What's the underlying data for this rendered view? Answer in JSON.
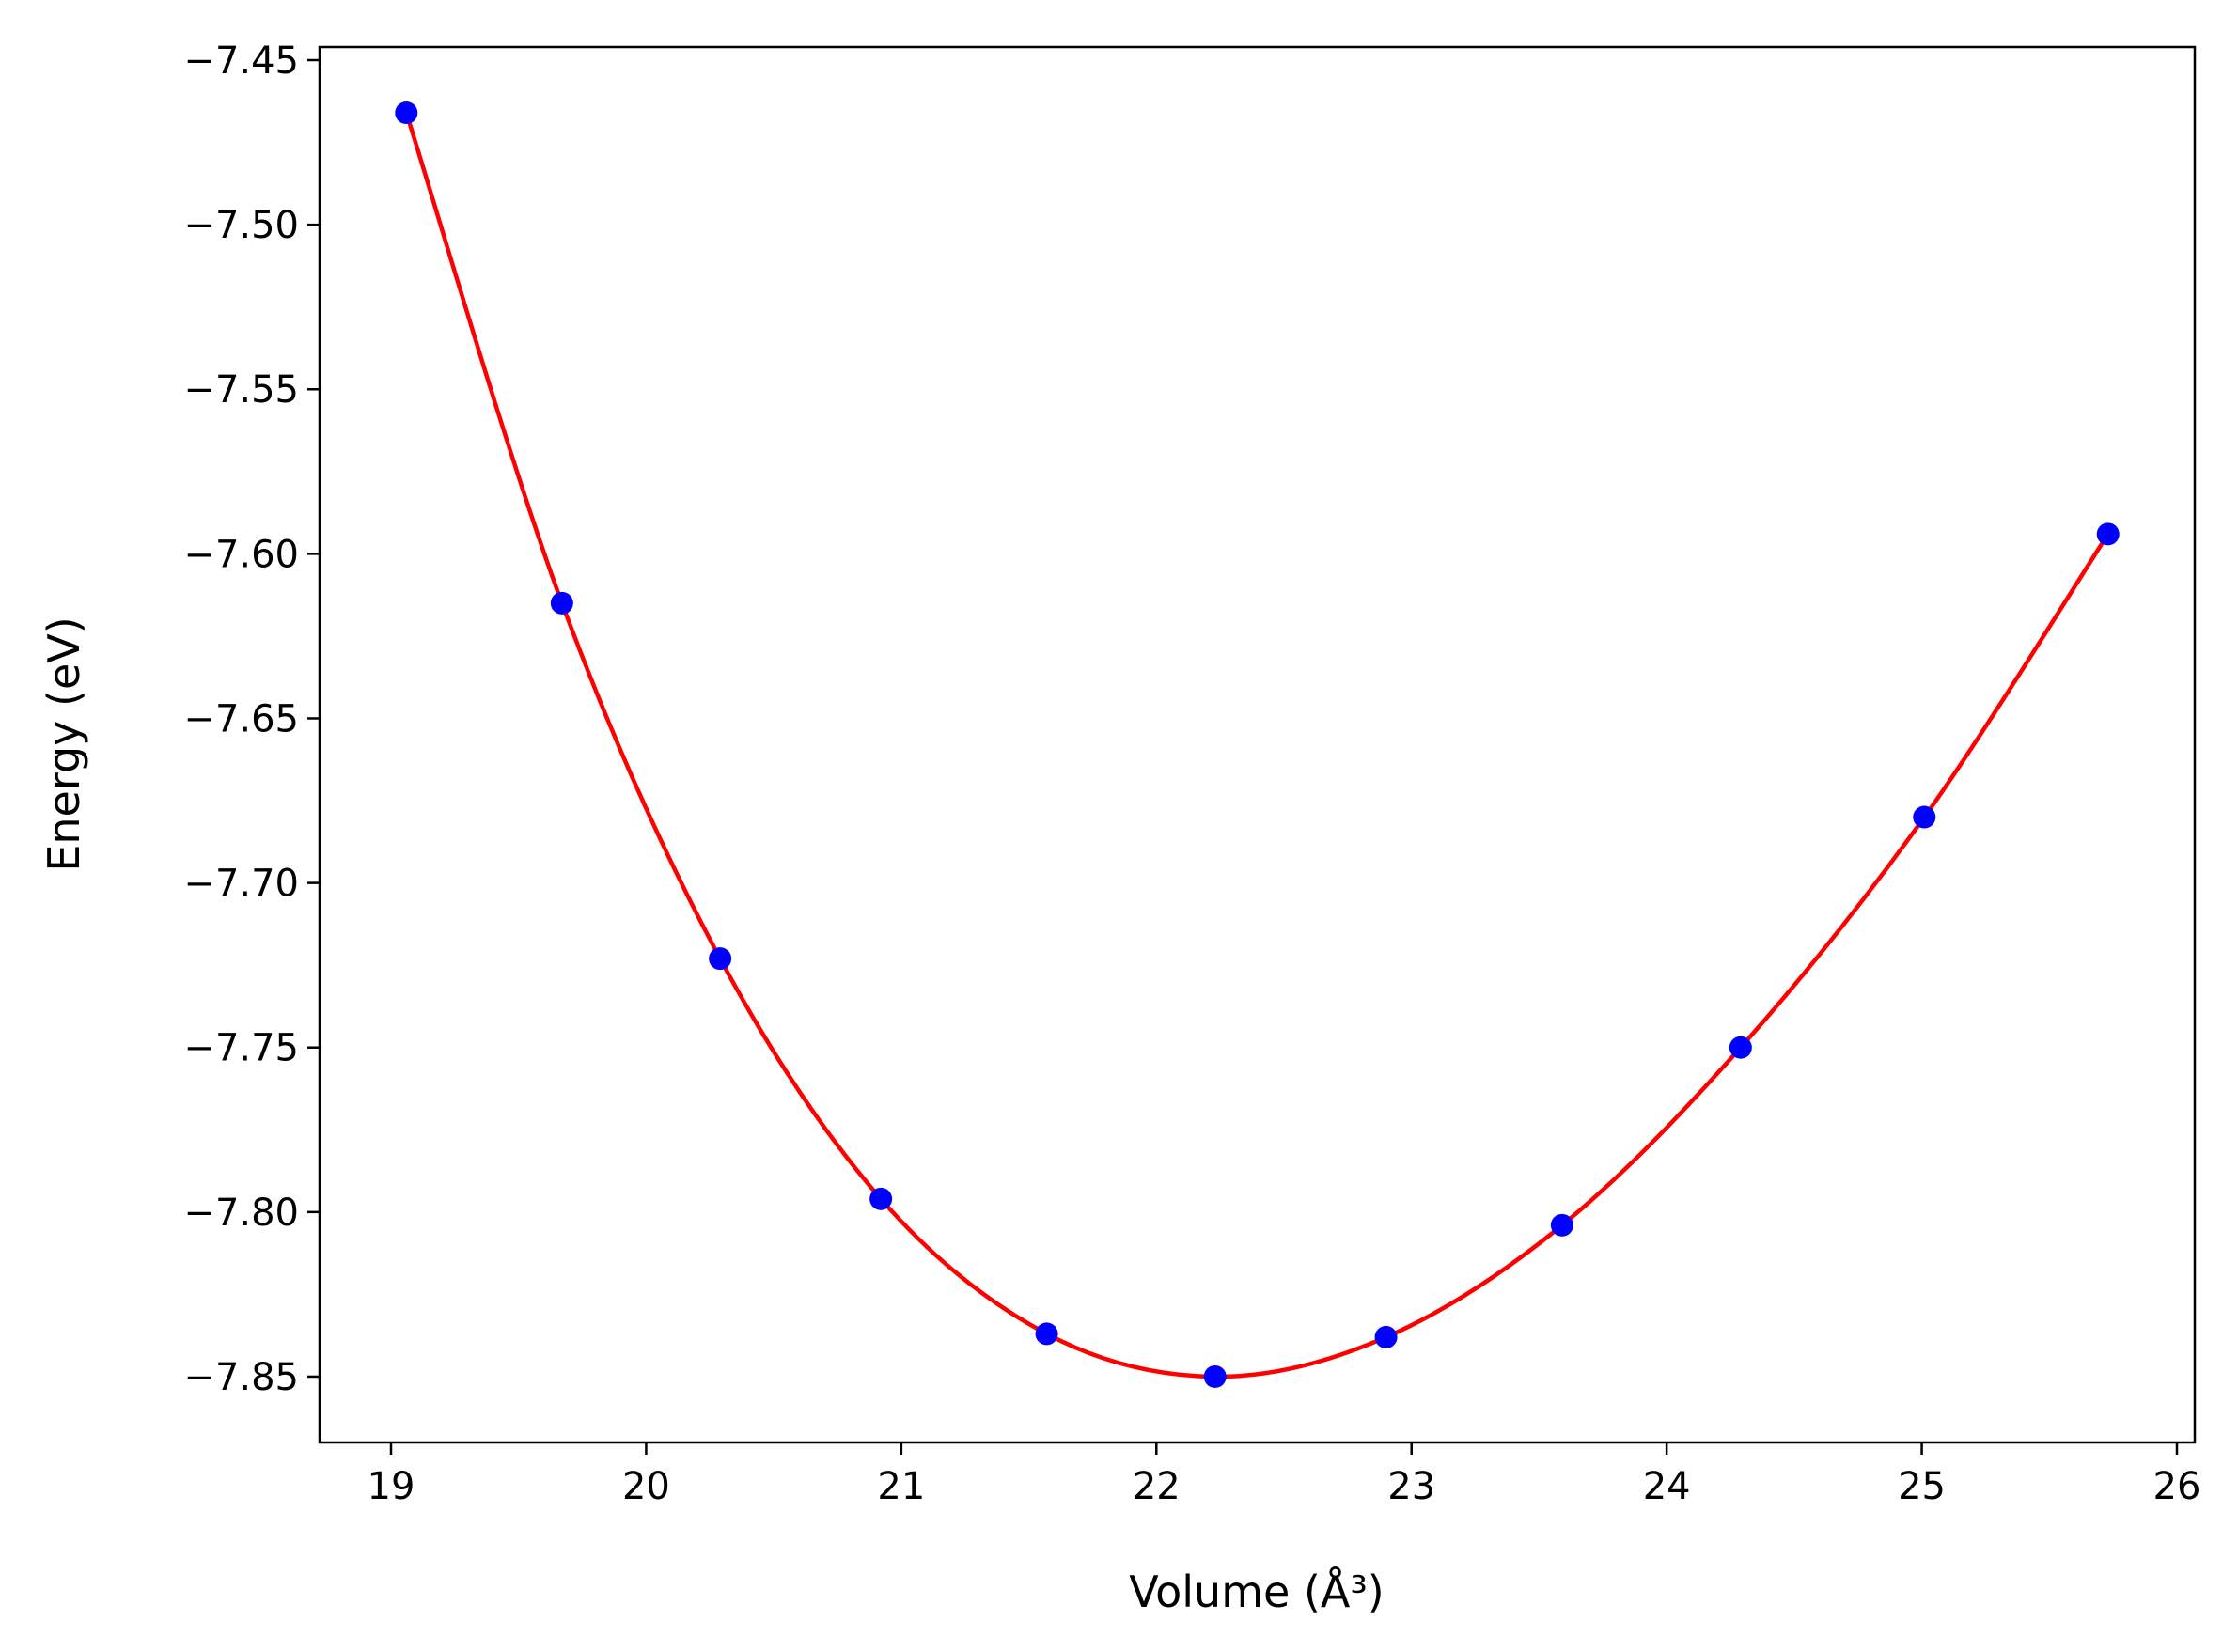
{
  "chart_data": {
    "type": "line",
    "xlabel": "Volume (Å³)",
    "ylabel": "Energy (eV)",
    "xlim": [
      18.72,
      26.07
    ],
    "ylim": [
      -7.87,
      -7.446
    ],
    "x_ticks": [
      19,
      20,
      21,
      22,
      23,
      24,
      25,
      26
    ],
    "y_ticks": [
      -7.45,
      -7.5,
      -7.55,
      -7.6,
      -7.65,
      -7.7,
      -7.75,
      -7.8,
      -7.85
    ],
    "x_tick_labels": [
      "19",
      "20",
      "21",
      "22",
      "23",
      "24",
      "25",
      "26"
    ],
    "y_tick_labels": [
      "−7.45",
      "−7.50",
      "−7.55",
      "−7.60",
      "−7.65",
      "−7.70",
      "−7.75",
      "−7.80",
      "−7.85"
    ],
    "grid": false,
    "series": [
      {
        "style": "markers",
        "x": [
          19.06,
          19.67,
          20.29,
          20.92,
          21.57,
          22.23,
          22.9,
          23.59,
          24.29,
          25.01,
          25.73
        ],
        "y": [
          -7.466,
          -7.615,
          -7.723,
          -7.796,
          -7.837,
          -7.85,
          -7.838,
          -7.804,
          -7.75,
          -7.68,
          -7.594
        ]
      },
      {
        "style": "line",
        "x": [
          19.06,
          19.67,
          20.29,
          20.92,
          21.57,
          22.23,
          22.9,
          23.59,
          24.29,
          25.01,
          25.73
        ],
        "y": [
          -7.466,
          -7.615,
          -7.723,
          -7.796,
          -7.837,
          -7.85,
          -7.838,
          -7.804,
          -7.75,
          -7.68,
          -7.594
        ]
      }
    ],
    "colors": {
      "markers": "#0000ff",
      "line": "#ff0000",
      "axes": "#000000"
    }
  }
}
